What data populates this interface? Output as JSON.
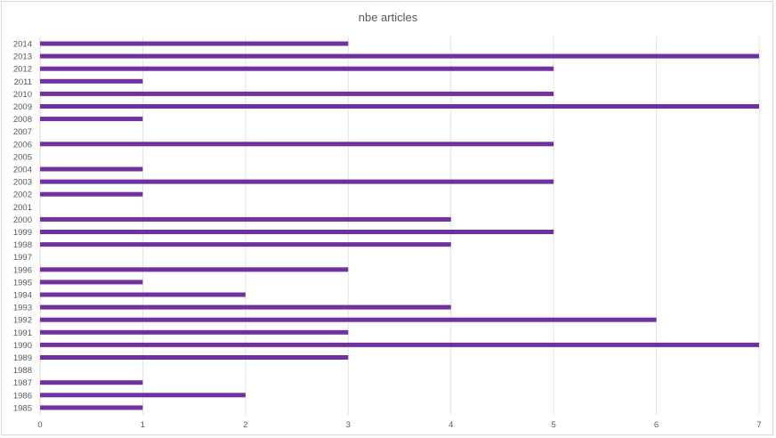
{
  "chart_data": {
    "type": "bar",
    "orientation": "horizontal",
    "title": "nbe articles",
    "xlabel": "",
    "ylabel": "",
    "xlim": [
      0,
      7
    ],
    "x_ticks": [
      "0",
      "1",
      "2",
      "3",
      "4",
      "5",
      "6",
      "7"
    ],
    "grid": "vertical",
    "bar_color": "#7030a0",
    "categories": [
      "2014",
      "2013",
      "2012",
      "2011",
      "2010",
      "2009",
      "2008",
      "2007",
      "2006",
      "2005",
      "2004",
      "2003",
      "2002",
      "2001",
      "2000",
      "1999",
      "1998",
      "1997",
      "1996",
      "1995",
      "1994",
      "1993",
      "1992",
      "1991",
      "1990",
      "1989",
      "1988",
      "1987",
      "1986",
      "1985"
    ],
    "values": [
      3,
      7,
      5,
      1,
      5,
      7,
      1,
      0,
      5,
      0,
      1,
      5,
      1,
      0,
      4,
      5,
      4,
      0,
      3,
      1,
      2,
      4,
      6,
      3,
      7,
      3,
      0,
      1,
      2,
      1
    ]
  }
}
